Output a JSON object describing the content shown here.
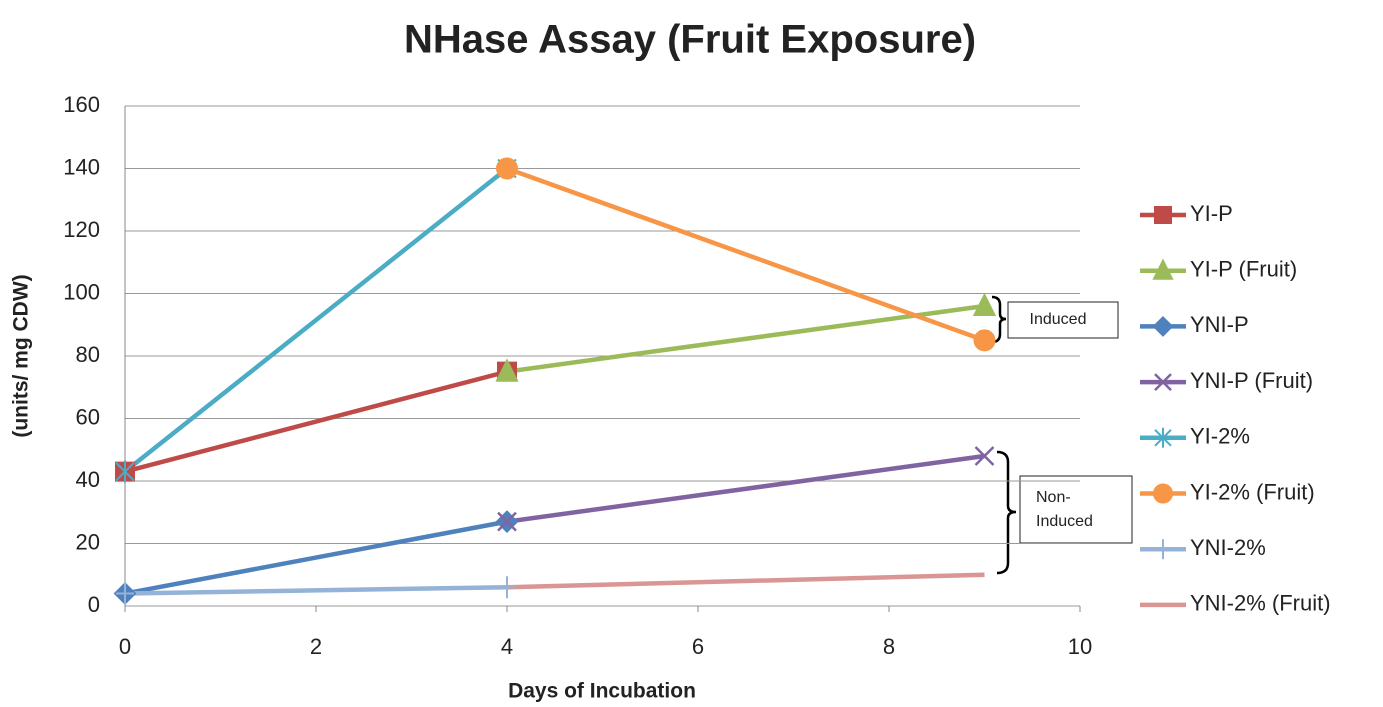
{
  "chart_data": {
    "type": "line",
    "title": "NHase Assay (Fruit Exposure)",
    "x_label": "Days of Incubation",
    "y_label": "(units/ mg CDW)",
    "xlim": [
      0,
      10
    ],
    "xticks": [
      0,
      2,
      4,
      6,
      8,
      10
    ],
    "ylim": [
      0,
      160
    ],
    "yticks": [
      0,
      20,
      40,
      60,
      80,
      100,
      120,
      140,
      160
    ],
    "grid": true,
    "legend": "right",
    "series": [
      {
        "name": "YI-P",
        "color": "#be4b48",
        "marker": "square",
        "x": [
          0,
          4
        ],
        "values": [
          43,
          75
        ]
      },
      {
        "name": "YI-P (Fruit)",
        "color": "#9bbb59",
        "marker": "triangle",
        "x": [
          4,
          9
        ],
        "values": [
          75,
          96
        ]
      },
      {
        "name": "YNI-P",
        "color": "#4f81bd",
        "marker": "diamond",
        "x": [
          0,
          4
        ],
        "values": [
          4,
          27
        ]
      },
      {
        "name": "YNI-P (Fruit)",
        "color": "#8064a2",
        "marker": "x",
        "x": [
          4,
          9
        ],
        "values": [
          27,
          48
        ]
      },
      {
        "name": "YI-2%",
        "color": "#4bacc6",
        "marker": "star",
        "x": [
          0,
          4
        ],
        "values": [
          43,
          140
        ]
      },
      {
        "name": "YI-2% (Fruit)",
        "color": "#f79646",
        "marker": "circle",
        "x": [
          4,
          9
        ],
        "values": [
          140,
          85
        ]
      },
      {
        "name": "YNI-2%",
        "color": "#95b3d7",
        "marker": "plus",
        "x": [
          0,
          4
        ],
        "values": [
          4,
          6
        ]
      },
      {
        "name": "YNI-2% (Fruit)",
        "color": "#d99694",
        "marker": "none",
        "x": [
          4,
          9
        ],
        "values": [
          6,
          10
        ]
      }
    ],
    "annotations": [
      {
        "lines": [
          "Induced"
        ]
      },
      {
        "lines": [
          "Non-",
          "Induced"
        ]
      }
    ]
  }
}
